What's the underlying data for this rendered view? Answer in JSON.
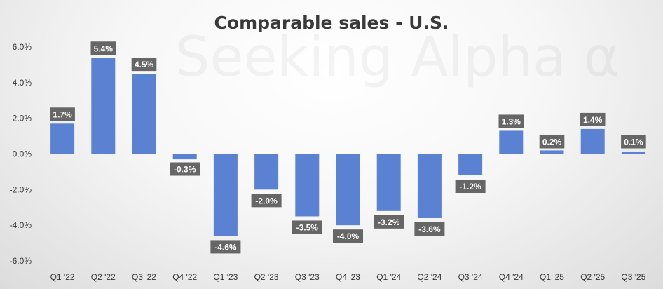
{
  "chart_data": {
    "type": "bar",
    "title": "Comparable sales - U.S.",
    "watermark": "Seeking Alpha α",
    "categories": [
      "Q1 '22",
      "Q2 '22",
      "Q3 '22",
      "Q4 '22",
      "Q1 '23",
      "Q2 '23",
      "Q3 '23",
      "Q4 '23",
      "Q1 '24",
      "Q2 '24",
      "Q3 '24",
      "Q4 '24",
      "Q1 '25",
      "Q2 '25",
      "Q3 '25"
    ],
    "values": [
      1.7,
      5.4,
      4.5,
      -0.3,
      -4.6,
      -2.0,
      -3.5,
      -4.0,
      -3.2,
      -3.6,
      -1.2,
      1.3,
      0.2,
      1.4,
      0.1
    ],
    "data_labels": [
      "1.7%",
      "5.4%",
      "4.5%",
      "-0.3%",
      "-4.6%",
      "-2.0%",
      "-3.5%",
      "-4.0%",
      "-3.2%",
      "-3.6%",
      "-1.2%",
      "1.3%",
      "0.2%",
      "1.4%",
      "0.1%"
    ],
    "yticks": [
      6,
      4,
      2,
      0,
      -2,
      -4,
      -6
    ],
    "ytick_labels": [
      "6.0%",
      "4.0%",
      "2.0%",
      "0.0%",
      "-2.0%",
      "-4.0%",
      "-6.0%"
    ],
    "ylim": [
      -6,
      6
    ],
    "grid": false,
    "legend": "none",
    "colors": {
      "bar": "#5b82d2",
      "label_bg": "#666666",
      "label_text": "#ffffff",
      "axis": "#000000"
    }
  }
}
